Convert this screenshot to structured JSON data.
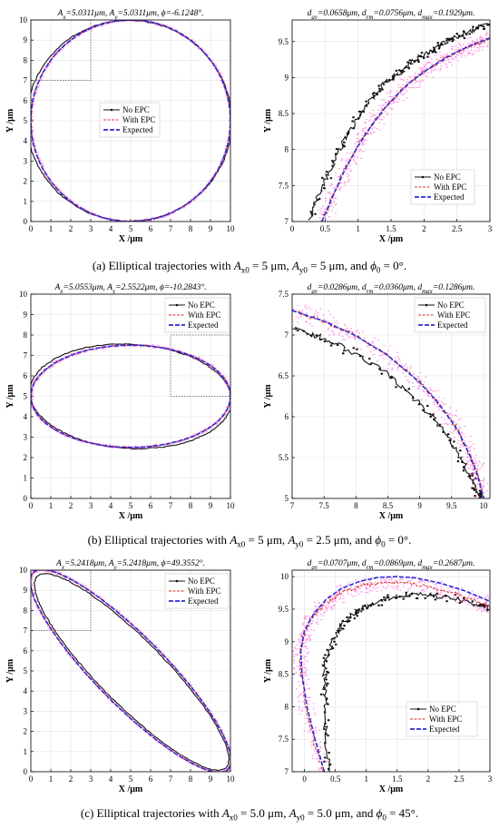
{
  "colors": {
    "no_epc": "#111111",
    "with_epc": "#d9342b",
    "expected": "#2b2bd6",
    "noise": "#ff3fd2",
    "zoom_box": "#555555"
  },
  "legend": {
    "no_epc": "No EPC",
    "with_epc": "With EPC",
    "expected": "Expected"
  },
  "axes": {
    "xlabel": "X /μm",
    "ylabel": "Y /μm"
  },
  "captions": [
    {
      "label": "(a) Elliptical trajectories with",
      "ax": "A",
      "ax_sub": "x0",
      "ax_val": " = 5 μm, ",
      "ay": "A",
      "ay_sub": "y0",
      "ay_val": " = 5 μm, and ",
      "phi": "ϕ",
      "phi_sub": "0",
      "phi_val": " = 0°."
    },
    {
      "label": "(b) Elliptical trajectories with",
      "ax": "A",
      "ax_sub": "x0",
      "ax_val": " = 5 μm, ",
      "ay": "A",
      "ay_sub": "y0",
      "ay_val": " = 2.5 μm, and ",
      "phi": "ϕ",
      "phi_sub": "0",
      "phi_val": " = 0°."
    },
    {
      "label": "(c) Elliptical trajectories with",
      "ax": "A",
      "ax_sub": "x0",
      "ax_val": " = 5.0 μm, ",
      "ay": "A",
      "ay_sub": "y0",
      "ay_val": " = 5.0 μm, and ",
      "phi": "ϕ",
      "phi_sub": "0",
      "phi_val": " = 45°."
    }
  ],
  "chart_data": [
    {
      "type": "line",
      "panel": "a-left",
      "title": "Ax=5.0311μm, Ay=5.0311μm, ϕ=-6.1248°.",
      "title_parts": {
        "ax": "5.0311μm",
        "ay": "5.0311μm",
        "phi": "-6.1248°."
      },
      "xlabel": "X /μm",
      "ylabel": "Y /μm",
      "xlim": [
        0,
        10
      ],
      "ylim": [
        0,
        10
      ],
      "xticks": [
        0,
        1,
        2,
        3,
        4,
        5,
        6,
        7,
        8,
        9,
        10
      ],
      "yticks": [
        0,
        1,
        2,
        3,
        4,
        5,
        6,
        7,
        8,
        9,
        10
      ],
      "grid": true,
      "legend_position": "center",
      "zoom_box": {
        "x": [
          0,
          3
        ],
        "y": [
          7,
          10
        ]
      },
      "series": [
        {
          "name": "No EPC",
          "shape": {
            "cx": 4.93,
            "cy": 5.0,
            "a": 5.03,
            "b": 5.03,
            "rot_deg": -6.12,
            "sx": 1.02,
            "sy": 0.99
          }
        },
        {
          "name": "With EPC",
          "shape": {
            "cx": 5.0,
            "cy": 5.0,
            "a": 5.0,
            "b": 5.0,
            "rot_deg": 0
          }
        },
        {
          "name": "Expected",
          "shape": {
            "cx": 5.0,
            "cy": 5.0,
            "a": 5.0,
            "b": 5.0,
            "rot_deg": 0
          }
        }
      ]
    },
    {
      "type": "line",
      "panel": "a-right",
      "title": "dav=0.0658μm, drm=0.0756μm, dmax=0.1929μm.",
      "title_parts": {
        "dav": "0.0658μm",
        "drm": "0.0756μm",
        "dmax": "0.1929μm."
      },
      "xlabel": "X /μm",
      "ylabel": "Y /μm",
      "xlim": [
        0,
        3
      ],
      "ylim": [
        7,
        9.8
      ],
      "xticks": [
        0,
        0.5,
        1,
        1.5,
        2,
        2.5,
        3
      ],
      "xtick_labels": [
        "0",
        "0.5",
        "1",
        "1.5",
        "2",
        "2.5",
        "3"
      ],
      "yticks": [
        7,
        7.5,
        8,
        8.5,
        9,
        9.5
      ],
      "ytick_labels": [
        "7",
        "7.5",
        "8",
        "8.5",
        "9",
        "9.5"
      ],
      "grid": true,
      "legend_position": "bottom-right",
      "series": [
        {
          "name": "No EPC",
          "x": [
            0.25,
            0.4,
            0.6,
            0.8,
            1.0,
            1.2,
            1.4,
            1.6,
            1.8,
            2.0,
            2.2,
            2.4,
            2.6,
            2.8,
            3.0
          ],
          "y": [
            7.0,
            7.35,
            7.78,
            8.15,
            8.45,
            8.7,
            8.9,
            9.05,
            9.2,
            9.32,
            9.42,
            9.52,
            9.6,
            9.68,
            9.75
          ]
        },
        {
          "name": "With EPC",
          "x": [
            0.45,
            0.6,
            0.8,
            1.0,
            1.2,
            1.4,
            1.6,
            1.8,
            2.0,
            2.2,
            2.4,
            2.6,
            2.8,
            3.0
          ],
          "y": [
            7.0,
            7.32,
            7.72,
            8.05,
            8.33,
            8.57,
            8.77,
            8.94,
            9.08,
            9.2,
            9.31,
            9.4,
            9.48,
            9.55
          ]
        },
        {
          "name": "Expected",
          "x": [
            0.45,
            0.6,
            0.8,
            1.0,
            1.2,
            1.4,
            1.6,
            1.8,
            2.0,
            2.2,
            2.4,
            2.6,
            2.8,
            3.0
          ],
          "y": [
            7.0,
            7.32,
            7.72,
            8.05,
            8.33,
            8.57,
            8.77,
            8.94,
            9.08,
            9.2,
            9.31,
            9.4,
            9.48,
            9.55
          ]
        }
      ]
    },
    {
      "type": "line",
      "panel": "b-left",
      "title": "Ax=5.0553μm, Ay=2.5522μm, ϕ=-10.2843°.",
      "title_parts": {
        "ax": "5.0553μm",
        "ay": "2.5522μm",
        "phi": "-10.2843°."
      },
      "xlabel": "X /μm",
      "ylabel": "Y /μm",
      "xlim": [
        0,
        10
      ],
      "ylim": [
        0,
        10
      ],
      "xticks": [
        0,
        1,
        2,
        3,
        4,
        5,
        6,
        7,
        8,
        9,
        10
      ],
      "yticks": [
        0,
        1,
        2,
        3,
        4,
        5,
        6,
        7,
        8,
        9,
        10
      ],
      "grid": true,
      "legend_position": "top-right",
      "zoom_box": {
        "x": [
          7,
          10
        ],
        "y": [
          5,
          8
        ]
      },
      "series": [
        {
          "name": "No EPC",
          "shape": {
            "cx": 5.0,
            "cy": 5.0,
            "a": 5.06,
            "b": 2.55,
            "rot_deg": -3.0
          }
        },
        {
          "name": "With EPC",
          "shape": {
            "cx": 5.0,
            "cy": 5.0,
            "a": 5.0,
            "b": 2.5,
            "rot_deg": 0
          }
        },
        {
          "name": "Expected",
          "shape": {
            "cx": 5.0,
            "cy": 5.0,
            "a": 5.0,
            "b": 2.5,
            "rot_deg": 0
          }
        }
      ]
    },
    {
      "type": "line",
      "panel": "b-right",
      "title": "dav=0.0286μm, drm=0.0360μm, dmax=0.1286μm.",
      "title_parts": {
        "dav": "0.0286μm",
        "drm": "0.0360μm",
        "dmax": "0.1286μm."
      },
      "xlabel": "X /μm",
      "ylabel": "Y /μm",
      "xlim": [
        7,
        10.1
      ],
      "ylim": [
        5,
        7.5
      ],
      "xticks": [
        7,
        7.5,
        8,
        8.5,
        9,
        9.5,
        10
      ],
      "xtick_labels": [
        "7",
        "7.5",
        "8",
        "8.5",
        "9",
        "9.5",
        "10"
      ],
      "yticks": [
        5,
        5.5,
        6,
        6.5,
        7,
        7.5
      ],
      "ytick_labels": [
        "5",
        "5.5",
        "6",
        "6.5",
        "7",
        "7.5"
      ],
      "grid": true,
      "legend_position": "top-right",
      "series": [
        {
          "name": "No EPC",
          "x": [
            7.0,
            7.5,
            8.0,
            8.5,
            9.0,
            9.3,
            9.6,
            9.8,
            9.9,
            9.97
          ],
          "y": [
            7.1,
            6.95,
            6.77,
            6.52,
            6.17,
            5.9,
            5.55,
            5.25,
            5.08,
            5.0
          ]
        },
        {
          "name": "With EPC",
          "x": [
            7.0,
            7.5,
            8.0,
            8.5,
            9.0,
            9.3,
            9.6,
            9.8,
            9.9,
            10.0
          ],
          "y": [
            7.3,
            7.17,
            6.99,
            6.75,
            6.42,
            6.16,
            5.83,
            5.5,
            5.3,
            5.0
          ]
        },
        {
          "name": "Expected",
          "x": [
            7.0,
            7.5,
            8.0,
            8.5,
            9.0,
            9.3,
            9.6,
            9.8,
            9.9,
            10.0
          ],
          "y": [
            7.3,
            7.17,
            6.99,
            6.75,
            6.42,
            6.16,
            5.83,
            5.5,
            5.3,
            5.0
          ]
        }
      ]
    },
    {
      "type": "line",
      "panel": "c-left",
      "title": "Ax=5.2418μm, Ay=5.2418μm, ϕ=49.3552°.",
      "title_parts": {
        "ax": "5.2418μm",
        "ay": "5.2418μm",
        "phi": "49.3552°."
      },
      "xlabel": "X /μm",
      "ylabel": "Y /μm",
      "xlim": [
        0,
        10
      ],
      "ylim": [
        0,
        10
      ],
      "xticks": [
        0,
        1,
        2,
        3,
        4,
        5,
        6,
        7,
        8,
        9,
        10
      ],
      "yticks": [
        0,
        1,
        2,
        3,
        4,
        5,
        6,
        7,
        8,
        9,
        10
      ],
      "grid": true,
      "legend_position": "top-right",
      "zoom_box": {
        "x": [
          0,
          3
        ],
        "y": [
          7,
          10
        ]
      },
      "series": [
        {
          "name": "No EPC",
          "shape": {
            "cx": 5.05,
            "cy": 4.95,
            "a": 6.7,
            "b": 1.62,
            "rot_deg": -45
          }
        },
        {
          "name": "With EPC",
          "shape": {
            "cx": 5.0,
            "cy": 5.0,
            "a": 6.9,
            "b": 1.72,
            "rot_deg": -45
          }
        },
        {
          "name": "Expected",
          "shape": {
            "cx": 5.0,
            "cy": 5.0,
            "a": 6.9,
            "b": 1.72,
            "rot_deg": -45
          }
        }
      ]
    },
    {
      "type": "line",
      "panel": "c-right",
      "title": "dav=0.0707μm, drm=0.0869μm, dmax=0.2687μm.",
      "title_parts": {
        "dav": "0.0707μm",
        "drm": "0.0869μm",
        "dmax": "0.2687μm."
      },
      "xlabel": "X /μm",
      "ylabel": "Y /μm",
      "xlim": [
        -0.2,
        3
      ],
      "ylim": [
        7,
        10.1
      ],
      "xticks": [
        0,
        0.5,
        1,
        1.5,
        2,
        2.5,
        3
      ],
      "xtick_labels": [
        "0",
        "0.5",
        "1",
        "1.5",
        "2",
        "2.5",
        "3"
      ],
      "yticks": [
        7,
        7.5,
        8,
        8.5,
        9,
        9.5,
        10
      ],
      "ytick_labels": [
        "7",
        "7.5",
        "8",
        "8.5",
        "9",
        "9.5",
        "10"
      ],
      "grid": true,
      "legend_position": "bottom-right",
      "series": [
        {
          "name": "No EPC",
          "x": [
            0.38,
            0.36,
            0.33,
            0.32,
            0.35,
            0.45,
            0.6,
            0.8,
            1.0,
            1.3,
            1.6,
            2.0,
            2.4,
            2.8,
            3.0
          ],
          "y": [
            7.0,
            7.5,
            8.0,
            8.4,
            8.7,
            9.0,
            9.25,
            9.43,
            9.55,
            9.65,
            9.72,
            9.72,
            9.67,
            9.57,
            9.5
          ]
        },
        {
          "name": "With EPC",
          "x": [
            0.3,
            0.15,
            0.02,
            -0.06,
            -0.07,
            0.0,
            0.15,
            0.35,
            0.6,
            0.9,
            1.2,
            1.6,
            2.0,
            2.4,
            2.8,
            3.0
          ],
          "y": [
            7.0,
            7.5,
            8.0,
            8.5,
            8.85,
            9.15,
            9.4,
            9.6,
            9.75,
            9.85,
            9.9,
            9.9,
            9.85,
            9.75,
            9.62,
            9.55
          ]
        },
        {
          "name": "Expected",
          "x": [
            0.32,
            0.17,
            0.04,
            -0.04,
            -0.06,
            0.0,
            0.15,
            0.35,
            0.6,
            0.9,
            1.2,
            1.5,
            1.8,
            2.2,
            2.6,
            3.0
          ],
          "y": [
            7.0,
            7.5,
            8.0,
            8.5,
            8.85,
            9.17,
            9.43,
            9.65,
            9.82,
            9.93,
            9.99,
            10.0,
            9.98,
            9.9,
            9.78,
            9.62
          ]
        }
      ]
    }
  ]
}
